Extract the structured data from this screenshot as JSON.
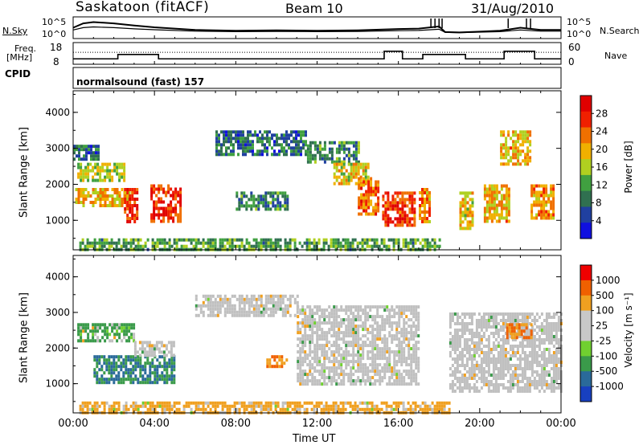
{
  "header": {
    "title": "Saskatoon (fitACF)",
    "beam": "Beam 10",
    "date": "31/Aug/2010"
  },
  "left_labels": {
    "nsky": "N.Sky",
    "freq_line1": "Freq.",
    "freq_line2": "[MHz]",
    "cpid": "CPID"
  },
  "right_labels": {
    "nsearch": "N.Search",
    "nave": "Nave"
  },
  "cpid_value": "normalsound (fast) 157",
  "colors": {
    "power_scale": [
      "#1010e0",
      "#2040a0",
      "#307050",
      "#40a040",
      "#b0d020",
      "#f0b000",
      "#f07000",
      "#f02000",
      "#e00000"
    ],
    "velocity_scale": [
      "#1840c0",
      "#2a6a9a",
      "#3a9a4a",
      "#70d030",
      "#c8c8c8",
      "#c8c8c8",
      "#f0a020",
      "#f06000",
      "#f00000"
    ],
    "ground_gray": "#c0c0c0"
  },
  "chart_data": [
    {
      "type": "line",
      "panel": "noise",
      "ylabel_left": "N.Sky",
      "ylabel_right": "N.Search",
      "ticks_left": [
        "10^5",
        "10^0"
      ],
      "ticks_right": [
        "10^5",
        "10^0"
      ],
      "x": [
        0,
        0.5,
        1,
        2,
        3,
        4,
        6,
        8,
        10,
        12,
        14,
        16,
        17,
        18,
        18.3,
        19,
        20,
        21,
        22,
        23,
        24
      ],
      "series": [
        {
          "values": [
            2.5,
            3.5,
            3.8,
            3.5,
            3.0,
            2.6,
            2.0,
            1.8,
            1.9,
            1.8,
            1.9,
            2.2,
            2.3,
            2.8,
            1.5,
            1.4,
            1.6,
            1.8,
            2.5,
            2.0,
            2.0
          ]
        }
      ],
      "yscale": "log"
    },
    {
      "type": "line",
      "panel": "frequency",
      "ylabel_left": "Freq. [MHz]",
      "ylabel_right": "Nave",
      "ticks_left": [
        "18",
        "8"
      ],
      "ticks_right": [
        "60",
        "0"
      ],
      "x": [
        0,
        1,
        2,
        2.2,
        4,
        4.2,
        6,
        8,
        10,
        12,
        14,
        15,
        15.3,
        16,
        16.2,
        17,
        17.2,
        19,
        19.3,
        21,
        21.2,
        22.5,
        22.7,
        24
      ],
      "series": [
        {
          "values": [
            10.5,
            10.5,
            10.5,
            12.5,
            12.5,
            10.5,
            10.5,
            10.5,
            10.5,
            10.5,
            10.5,
            10.5,
            14,
            14,
            10.5,
            10.5,
            12.5,
            12.5,
            10.5,
            10.5,
            14,
            14,
            10.5,
            10.5
          ]
        }
      ]
    },
    {
      "type": "heatmap",
      "title": "Power",
      "xlabel": "",
      "ylabel": "Slant Range [km]",
      "yticks": [
        1000,
        2000,
        3000,
        4000
      ],
      "xlim": [
        0,
        24
      ],
      "ylim": [
        180,
        4600
      ],
      "colorbar_label": "Power [dB]",
      "colorbar_ticks": [
        "28",
        "24",
        "20",
        "16",
        "12",
        "8",
        "4"
      ],
      "colorbar_min": 0,
      "colorbar_max": 32,
      "blobs": [
        {
          "t0": 0.0,
          "t1": 1.2,
          "r0": 2700,
          "r1": 3100,
          "v": 8
        },
        {
          "t0": 0.2,
          "t1": 2.5,
          "r0": 2100,
          "r1": 2600,
          "v": 16
        },
        {
          "t0": 0.1,
          "t1": 2.8,
          "r0": 1400,
          "r1": 1900,
          "v": 20
        },
        {
          "t0": 2.5,
          "t1": 3.2,
          "r0": 1000,
          "r1": 1900,
          "v": 26
        },
        {
          "t0": 3.8,
          "t1": 5.3,
          "r0": 1000,
          "r1": 2000,
          "v": 27
        },
        {
          "t0": 7.0,
          "t1": 11.5,
          "r0": 2800,
          "r1": 3500,
          "v": 8
        },
        {
          "t0": 11.5,
          "t1": 14.0,
          "r0": 2600,
          "r1": 3200,
          "v": 10
        },
        {
          "t0": 12.8,
          "t1": 14.5,
          "r0": 2000,
          "r1": 2600,
          "v": 18
        },
        {
          "t0": 14.0,
          "t1": 15.0,
          "r0": 1200,
          "r1": 2200,
          "v": 24
        },
        {
          "t0": 15.2,
          "t1": 16.8,
          "r0": 900,
          "r1": 1800,
          "v": 26
        },
        {
          "t0": 17.0,
          "t1": 17.5,
          "r0": 1000,
          "r1": 1900,
          "v": 22
        },
        {
          "t0": 19.0,
          "t1": 19.6,
          "r0": 800,
          "r1": 1800,
          "v": 18
        },
        {
          "t0": 20.2,
          "t1": 21.4,
          "r0": 1000,
          "r1": 2000,
          "v": 20
        },
        {
          "t0": 22.5,
          "t1": 23.6,
          "r0": 1100,
          "r1": 2000,
          "v": 22
        },
        {
          "t0": 21.0,
          "t1": 22.5,
          "r0": 2600,
          "r1": 3500,
          "v": 20
        },
        {
          "t0": 0.3,
          "t1": 18.0,
          "r0": 200,
          "r1": 500,
          "v": 12
        },
        {
          "t0": 8.0,
          "t1": 10.5,
          "r0": 1300,
          "r1": 1800,
          "v": 10
        }
      ]
    },
    {
      "type": "heatmap",
      "title": "Velocity",
      "xlabel": "Time UT",
      "ylabel": "Slant Range [km]",
      "xticks": [
        "00:00",
        "04:00",
        "08:00",
        "12:00",
        "16:00",
        "20:00",
        "00:00"
      ],
      "yticks": [
        1000,
        2000,
        3000,
        4000
      ],
      "xlim": [
        0,
        24
      ],
      "ylim": [
        180,
        4600
      ],
      "colorbar_label": "Velocity [m s⁻¹]",
      "colorbar_ticks": [
        "1000",
        "500",
        "100",
        "25",
        "-25",
        "-100",
        "-500",
        "-1000"
      ],
      "blobs": [
        {
          "t0": 0.2,
          "t1": 3.0,
          "r0": 2200,
          "r1": 2700,
          "v": 100
        },
        {
          "t0": 1.0,
          "t1": 5.0,
          "r0": 1000,
          "r1": 1800,
          "v": 300
        },
        {
          "t0": 6.0,
          "t1": 11.0,
          "r0": 2900,
          "r1": 3500,
          "v": 0
        },
        {
          "t0": 11.0,
          "t1": 17.0,
          "r0": 1000,
          "r1": 3200,
          "v": 0
        },
        {
          "t0": 18.5,
          "t1": 24.0,
          "r0": 800,
          "r1": 3000,
          "v": 0
        },
        {
          "t0": 21.3,
          "t1": 22.5,
          "r0": 2300,
          "r1": 2700,
          "v": -300
        },
        {
          "t0": 9.5,
          "t1": 10.5,
          "r0": 1500,
          "r1": 1800,
          "v": -300
        },
        {
          "t0": 0.3,
          "t1": 18.5,
          "r0": 200,
          "r1": 500,
          "v": -100
        },
        {
          "t0": 3.0,
          "t1": 5.0,
          "r0": 1800,
          "r1": 2200,
          "v": 0
        }
      ]
    }
  ],
  "xaxis_label": "Time UT"
}
